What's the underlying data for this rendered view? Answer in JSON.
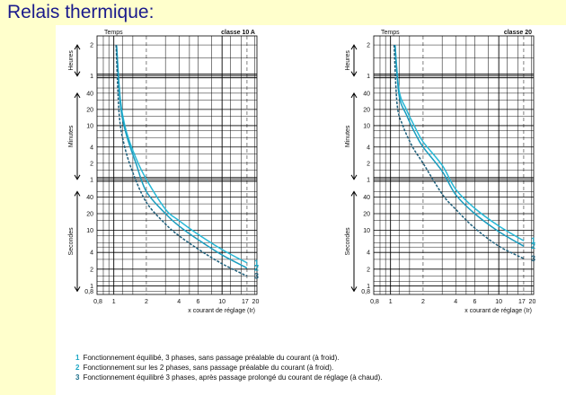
{
  "slide": {
    "title": "Relais thermique:"
  },
  "colors": {
    "series_1": "#27b8d6",
    "series_2": "#1a9dbf",
    "series_3": "#1d5e7a",
    "grid": "#000000",
    "label": "#1ba6c4"
  },
  "chart_data": [
    {
      "type": "line",
      "title": "classe 10 A",
      "ylabel": "Temps",
      "xlabel": "x courant de réglage (Ir)",
      "xscale": "log",
      "x_ticks": [
        "0,8",
        "1",
        "2",
        "4",
        "6",
        "10",
        "17",
        "20"
      ],
      "y_sections": [
        "Heures",
        "Minutes",
        "Secondes"
      ],
      "y_ticks_heures": [
        "2",
        "1"
      ],
      "y_ticks_minutes": [
        "40",
        "20",
        "10",
        "4",
        "2",
        "1"
      ],
      "y_ticks_secondes": [
        "40",
        "20",
        "10",
        "4",
        "2",
        "1",
        "0,8"
      ],
      "series": [
        {
          "name": "1",
          "x": [
            1.06,
            1.15,
            1.3,
            1.6,
            2,
            3,
            4,
            6,
            10,
            17
          ],
          "y_seconds": [
            7200,
            1800,
            480,
            150,
            60,
            24,
            15,
            8.5,
            4.5,
            2.6
          ]
        },
        {
          "name": "2",
          "x": [
            1.06,
            1.15,
            1.3,
            1.6,
            2,
            3,
            4,
            6,
            10,
            17
          ],
          "y_seconds": [
            7200,
            1500,
            420,
            120,
            50,
            20,
            12,
            6.8,
            3.6,
            2.1
          ]
        },
        {
          "name": "3",
          "x": [
            1.05,
            1.12,
            1.25,
            1.5,
            2,
            3,
            4,
            6,
            10,
            17
          ],
          "y_seconds": [
            7200,
            1000,
            260,
            80,
            32,
            13,
            8,
            4.6,
            2.5,
            1.5
          ]
        }
      ]
    },
    {
      "type": "line",
      "title": "classe 20",
      "ylabel": "Temps",
      "xlabel": "x courant de réglage (Ir)",
      "xscale": "log",
      "x_ticks": [
        "0,8",
        "1",
        "2",
        "4",
        "6",
        "10",
        "17",
        "20"
      ],
      "y_sections": [
        "Heures",
        "Minutes",
        "Secondes"
      ],
      "y_ticks_heures": [
        "2",
        "1"
      ],
      "y_ticks_minutes": [
        "40",
        "20",
        "10",
        "4",
        "2",
        "1"
      ],
      "y_ticks_secondes": [
        "40",
        "20",
        "10",
        "4",
        "2",
        "1",
        "0,8"
      ],
      "series": [
        {
          "name": "1",
          "x": [
            1.1,
            1.2,
            1.4,
            1.7,
            2,
            3,
            4,
            6,
            10,
            17
          ],
          "y_seconds": [
            7200,
            2700,
            1200,
            540,
            300,
            110,
            55,
            25,
            12,
            6.5
          ]
        },
        {
          "name": "2",
          "x": [
            1.1,
            1.2,
            1.4,
            1.7,
            2,
            3,
            4,
            6,
            10,
            17
          ],
          "y_seconds": [
            7200,
            2200,
            960,
            420,
            240,
            85,
            44,
            20,
            9.5,
            5.2
          ]
        },
        {
          "name": "3",
          "x": [
            1.08,
            1.15,
            1.3,
            1.6,
            2,
            3,
            4,
            6,
            10,
            17
          ],
          "y_seconds": [
            7200,
            1500,
            600,
            240,
            120,
            45,
            24,
            11,
            5.2,
            3.1
          ]
        }
      ]
    }
  ],
  "legend": [
    {
      "num": "1",
      "text": "Fonctionnement équilibé, 3 phases, sans passage préalable du courant (à froid)."
    },
    {
      "num": "2",
      "text": "Fonctionnement sur les 2 phases, sans passage préalable du courant (à froid)."
    },
    {
      "num": "3",
      "text": "Fonctionnement équilibré 3 phases, après passage prolongé du courant de réglage (à chaud)."
    }
  ]
}
